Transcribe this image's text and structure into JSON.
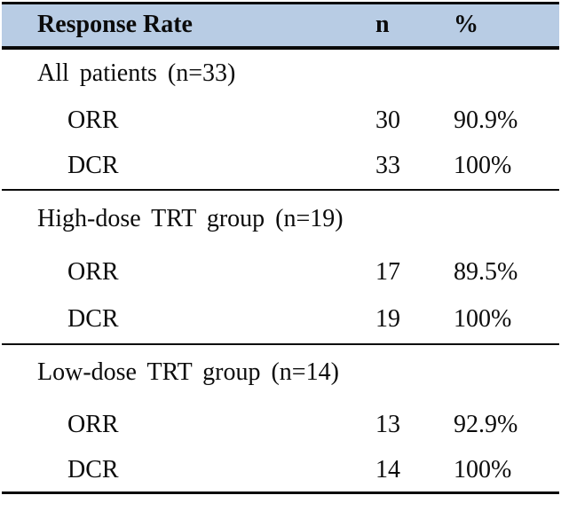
{
  "colors": {
    "header_bg": "#B8CCE4",
    "border": "#0A0A0A",
    "text": "#0B0B0B",
    "page_bg": "#FFFFFF"
  },
  "table": {
    "columns": {
      "label": "Response Rate",
      "n": "n",
      "pct": "%"
    },
    "sections": [
      {
        "group": "All patients (n=33)",
        "rows": [
          {
            "label": "ORR",
            "n": "30",
            "pct": "90.9%"
          },
          {
            "label": "DCR",
            "n": "33",
            "pct": "100%"
          }
        ]
      },
      {
        "group": "High-dose TRT group (n=19)",
        "rows": [
          {
            "label": "ORR",
            "n": "17",
            "pct": "89.5%"
          },
          {
            "label": "DCR",
            "n": "19",
            "pct": "100%"
          }
        ]
      },
      {
        "group": "Low-dose TRT group (n=14)",
        "rows": [
          {
            "label": "ORR",
            "n": "13",
            "pct": "92.9%"
          },
          {
            "label": "DCR",
            "n": "14",
            "pct": "100%"
          }
        ]
      }
    ]
  },
  "chart_data": {
    "type": "table",
    "title": "Response Rate",
    "columns": [
      "Response Rate",
      "n",
      "%"
    ],
    "rows": [
      [
        "All patients (n=33)",
        "",
        ""
      ],
      [
        "ORR",
        "30",
        "90.9%"
      ],
      [
        "DCR",
        "33",
        "100%"
      ],
      [
        "High-dose TRT group (n=19)",
        "",
        ""
      ],
      [
        "ORR",
        "17",
        "89.5%"
      ],
      [
        "DCR",
        "19",
        "100%"
      ],
      [
        "Low-dose TRT group (n=14)",
        "",
        ""
      ],
      [
        "ORR",
        "13",
        "92.9%"
      ],
      [
        "DCR",
        "14",
        "100%"
      ]
    ]
  }
}
